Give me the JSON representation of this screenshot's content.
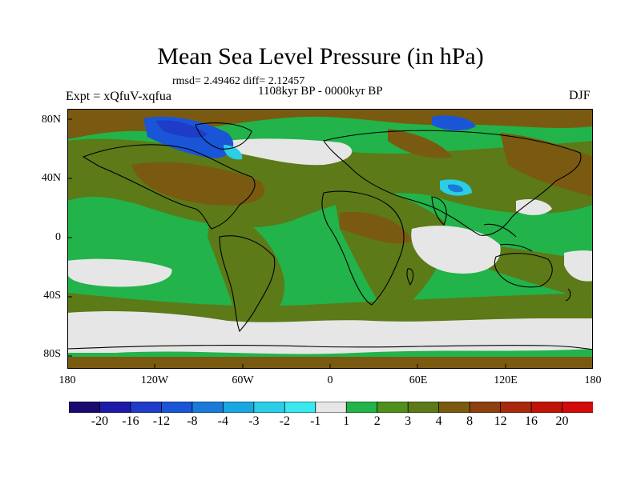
{
  "header": {
    "title": "Mean Sea Level Pressure (in hPa)",
    "stats": "rmsd= 2.49462 diff= 2.12457",
    "period": "1108kyr BP - 0000kyr BP",
    "experiment": "Expt = xQfuV-xqfua",
    "season": "DJF"
  },
  "axes": {
    "lat_labels": [
      "80N",
      "40N",
      "0",
      "40S",
      "80S"
    ],
    "lon_labels": [
      "180",
      "120W",
      "60W",
      "0",
      "60E",
      "120E",
      "180"
    ]
  },
  "colorbar": {
    "labels": [
      "-20",
      "-16",
      "-12",
      "-8",
      "-4",
      "-3",
      "-2",
      "-1",
      "1",
      "2",
      "3",
      "4",
      "8",
      "12",
      "16",
      "20"
    ],
    "colors": [
      "#1a0a6e",
      "#1e1aa8",
      "#1f3cc8",
      "#1a55d8",
      "#1a7ad8",
      "#1aa6e0",
      "#2ccde6",
      "#3ae8ee",
      "#e6e6e6",
      "#22b34a",
      "#4f8f1a",
      "#5c7a18",
      "#7a5a10",
      "#8c4010",
      "#a82a0c",
      "#c01408",
      "#d20a0a"
    ]
  },
  "palette": {
    "ocean_green": "#22b34a",
    "land_olive": "#5c7a18",
    "brown": "#7a5a10",
    "white_band": "#e6e6e6",
    "blue_low": "#1a55d8",
    "cyan_low": "#2ccde6"
  }
}
